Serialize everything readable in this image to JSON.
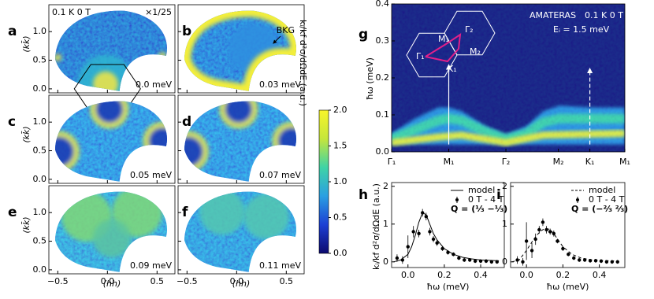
{
  "chart_data": [
    {
      "type": "map-grid",
      "xlabel": "(hh)",
      "ylabel": "(kk̄)",
      "xlim": [
        -0.59,
        0.68
      ],
      "ylim": [
        -0.07,
        1.47
      ],
      "xticks": [
        {
          "value": -0.5,
          "label": "−0.5"
        },
        {
          "value": 0,
          "label": "0.0"
        },
        {
          "value": 0.5,
          "label": "0.5"
        }
      ],
      "yticks": [
        {
          "value": 0,
          "label": "0.0"
        },
        {
          "value": 0.5,
          "label": "0.5"
        },
        {
          "value": 1,
          "label": "1.0"
        }
      ],
      "panels": [
        {
          "label": "a",
          "energy": "0.0 meV",
          "notes": [
            "0.1 K 0 T",
            "×1/25"
          ]
        },
        {
          "label": "b",
          "energy": "0.03  meV",
          "notes": [
            "BKG"
          ]
        },
        {
          "label": "c",
          "energy": "0.05 meV"
        },
        {
          "label": "d",
          "energy": "0.07 meV"
        },
        {
          "label": "e",
          "energy": "0.09 meV"
        },
        {
          "label": "f",
          "energy": "0.11 meV"
        }
      ]
    },
    {
      "type": "colorbar",
      "label": "kᵢ/kf d²σ/dΩdE  (a.u.)",
      "lim": [
        0,
        2
      ],
      "ticks": [
        {
          "value": 0,
          "label": "0.0"
        },
        0.5,
        {
          "value": 1,
          "label": "1.0"
        },
        1.5,
        {
          "value": 2,
          "label": "2.0"
        }
      ],
      "colors": [
        "#0c0a6e",
        "#1d3fd4",
        "#2a9fe2",
        "#3fd3a6",
        "#c5e63c",
        "#f8f52a"
      ]
    },
    {
      "type": "dispersion-map",
      "panel": "g",
      "notes": [
        "AMATERAS",
        "0.1 K 0 T",
        "Eᵢ = 1.5 meV"
      ],
      "categories": [
        "Γ₁",
        "M₁",
        "Γ₂",
        "M₂",
        "K₁",
        "M₁"
      ],
      "ylabel": "ħω (meV)",
      "ylim": [
        0,
        0.4
      ],
      "yticks": [
        {
          "value": 0,
          "label": "0.0"
        },
        0.1,
        0.2,
        0.3,
        0.4
      ],
      "inset_labels": [
        "Γ₁",
        "M₁",
        "Γ₂",
        "M₂",
        "K₁"
      ]
    },
    {
      "type": "scatter-line",
      "panel": "h",
      "xlabel": "ħω (meV)",
      "ylabel": "kᵢ/kf d²σ/dΩdE  (a.u.)",
      "xlim": [
        -0.09,
        0.53
      ],
      "ylim": [
        -0.15,
        2.1
      ],
      "xticks": [
        {
          "value": 0,
          "label": "0.0"
        },
        0.2,
        0.4
      ],
      "yticks": [
        0,
        1,
        2
      ],
      "annotation": "Q = (⅓ −⅓)",
      "series": [
        {
          "name": "model",
          "color": "#000000",
          "dashed": false,
          "x": [
            -0.08,
            -0.04,
            0,
            0.02,
            0.04,
            0.06,
            0.08,
            0.1,
            0.12,
            0.14,
            0.16,
            0.2,
            0.25,
            0.3,
            0.35,
            0.4,
            0.45,
            0.5
          ],
          "values": [
            0,
            0.05,
            0.2,
            0.4,
            0.7,
            1.05,
            1.3,
            1.25,
            1.0,
            0.75,
            0.58,
            0.35,
            0.2,
            0.12,
            0.08,
            0.05,
            0.04,
            0.03
          ]
        },
        {
          "name": "0 T - 4 T",
          "color": "#000000",
          "x": [
            -0.06,
            -0.03,
            0,
            0.03,
            0.06,
            0.08,
            0.1,
            0.12,
            0.14,
            0.16,
            0.19,
            0.22,
            0.25,
            0.28,
            0.31,
            0.34,
            0.37,
            0.4,
            0.43,
            0.46,
            0.49
          ],
          "values": [
            0.1,
            0.05,
            0.4,
            0.8,
            0.75,
            1.3,
            1.2,
            0.8,
            0.6,
            0.5,
            0.35,
            0.25,
            0.2,
            0.1,
            0.05,
            0.05,
            0.02,
            0.02,
            0.02,
            0,
            0
          ],
          "errors": [
            0.1,
            0.1,
            0.3,
            0.15,
            0.1,
            0.1,
            0.1,
            0.1,
            0.08,
            0.08,
            0.06,
            0.06,
            0.05,
            0.05,
            0.05,
            0.05,
            0.05,
            0.05,
            0.05,
            0.05,
            0.05
          ]
        }
      ]
    },
    {
      "type": "scatter-line",
      "panel": "i",
      "xlabel": "ħω (meV)",
      "xlim": [
        -0.087,
        0.54
      ],
      "ylim": [
        -0.15,
        2.1
      ],
      "xticks": [
        {
          "value": 0,
          "label": "0.0"
        },
        0.2,
        0.4
      ],
      "yticks": [
        0,
        1,
        2
      ],
      "annotation": "Q = (−⅔ ⅔)",
      "series": [
        {
          "name": "model",
          "color": "#000000",
          "dashed": true,
          "x": [
            -0.08,
            -0.04,
            0,
            0.02,
            0.04,
            0.06,
            0.08,
            0.1,
            0.12,
            0.14,
            0.16,
            0.2,
            0.25,
            0.3,
            0.35,
            0.4,
            0.45,
            0.5
          ],
          "values": [
            0,
            0.05,
            0.3,
            0.45,
            0.6,
            0.72,
            0.82,
            0.88,
            0.87,
            0.8,
            0.68,
            0.4,
            0.2,
            0.1,
            0.06,
            0.04,
            0.03,
            0.02
          ]
        },
        {
          "name": "0 T - 4 T",
          "color": "#000000",
          "x": [
            -0.05,
            -0.02,
            0,
            0.03,
            0.05,
            0.07,
            0.09,
            0.11,
            0.13,
            0.15,
            0.17,
            0.2,
            0.23,
            0.26,
            0.29,
            0.32,
            0.35,
            0.38,
            0.41,
            0.44,
            0.47,
            0.5
          ],
          "values": [
            0.05,
            0,
            0.55,
            0.3,
            0.6,
            0.85,
            1.05,
            0.85,
            0.8,
            0.75,
            0.55,
            0.35,
            0.2,
            0.1,
            0.05,
            0.05,
            0.03,
            0.03,
            0.02,
            0,
            0,
            0
          ],
          "errors": [
            0.1,
            0.1,
            0.5,
            0.2,
            0.15,
            0.1,
            0.1,
            0.1,
            0.08,
            0.08,
            0.06,
            0.06,
            0.05,
            0.05,
            0.05,
            0.05,
            0.05,
            0.05,
            0.05,
            0.05,
            0.05,
            0.05
          ]
        }
      ]
    }
  ]
}
